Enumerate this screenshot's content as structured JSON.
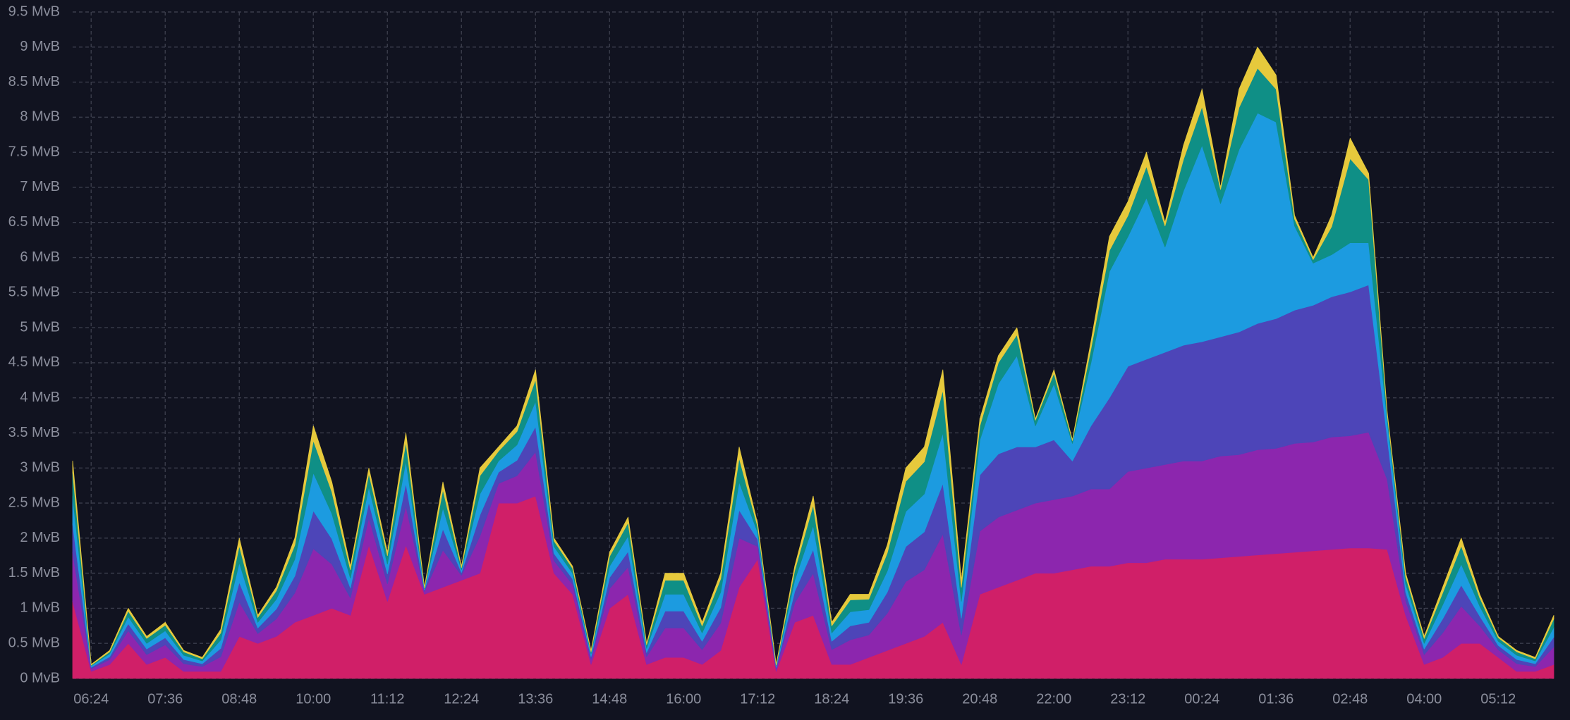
{
  "chart_data": {
    "type": "stacked-area",
    "categories": [
      null,
      "06:24",
      null,
      null,
      null,
      "07:36",
      null,
      null,
      null,
      "08:48",
      null,
      null,
      null,
      "10:00",
      null,
      null,
      null,
      "11:12",
      null,
      null,
      null,
      "12:24",
      null,
      null,
      null,
      "13:36",
      null,
      null,
      null,
      "14:48",
      null,
      null,
      null,
      "16:00",
      null,
      null,
      null,
      "17:12",
      null,
      null,
      null,
      "18:24",
      null,
      null,
      null,
      "19:36",
      null,
      null,
      null,
      "20:48",
      null,
      null,
      null,
      "22:00",
      null,
      null,
      null,
      "23:12",
      null,
      null,
      null,
      "00:24",
      null,
      null,
      null,
      "01:36",
      null,
      null,
      null,
      "02:48",
      null,
      null,
      null,
      "04:00",
      null,
      null,
      null,
      "05:12",
      null,
      null,
      null
    ],
    "ylim": [
      0,
      9.5
    ],
    "yticks": [
      {
        "value": 0,
        "label": "0 MvB"
      },
      {
        "value": 0.5,
        "label": "0.5 MvB"
      },
      {
        "value": 1,
        "label": "1 MvB"
      },
      {
        "value": 1.5,
        "label": "1.5 MvB"
      },
      {
        "value": 2,
        "label": "2 MvB"
      },
      {
        "value": 2.5,
        "label": "2.5 MvB"
      },
      {
        "value": 3,
        "label": "3 MvB"
      },
      {
        "value": 3.5,
        "label": "3.5 MvB"
      },
      {
        "value": 4,
        "label": "4 MvB"
      },
      {
        "value": 4.5,
        "label": "4.5 MvB"
      },
      {
        "value": 5,
        "label": "5 MvB"
      },
      {
        "value": 5.5,
        "label": "5.5 MvB"
      },
      {
        "value": 6,
        "label": "6 MvB"
      },
      {
        "value": 6.5,
        "label": "6.5 MvB"
      },
      {
        "value": 7,
        "label": "7 MvB"
      },
      {
        "value": 7.5,
        "label": "7.5 MvB"
      },
      {
        "value": 8,
        "label": "8 MvB"
      },
      {
        "value": 8.5,
        "label": "8.5 MvB"
      },
      {
        "value": 9,
        "label": "9 MvB"
      },
      {
        "value": 9.5,
        "label": "9.5 MvB"
      }
    ],
    "grid": true,
    "series": [
      {
        "color": "#d01f68",
        "values": [
          1.1,
          0.1,
          0.2,
          0.5,
          0.2,
          0.3,
          0.1,
          0.1,
          0.1,
          0.6,
          0.5,
          0.6,
          0.8,
          0.9,
          1.0,
          0.9,
          1.9,
          1.1,
          1.9,
          1.2,
          1.3,
          1.4,
          1.5,
          2.5,
          2.5,
          2.6,
          1.5,
          1.2,
          0.2,
          1.0,
          1.2,
          0.2,
          0.3,
          0.3,
          0.2,
          0.4,
          1.3,
          1.7,
          0.1,
          0.8,
          0.9,
          0.2,
          0.2,
          0.3,
          0.4,
          0.5,
          0.6,
          0.8,
          0.2,
          1.2,
          1.3,
          1.4,
          1.5,
          1.5,
          1.55,
          1.6,
          1.6,
          1.65,
          1.65,
          1.7,
          1.7,
          1.7,
          1.72,
          1.74,
          1.76,
          1.78,
          1.8,
          1.82,
          1.84,
          1.86,
          1.86,
          1.84,
          0.9,
          0.2,
          0.3,
          0.5,
          0.5,
          0.3,
          0.1,
          0.1,
          0.2
        ]
      },
      {
        "color": "#8c26ae",
        "values": [
          0.7,
          0.04,
          0.07,
          0.18,
          0.14,
          0.18,
          0.11,
          0.07,
          0.21,
          0.49,
          0.14,
          0.25,
          0.42,
          0.95,
          0.63,
          0.25,
          0.39,
          0.25,
          0.56,
          0.04,
          0.53,
          0.07,
          0.53,
          0.28,
          0.39,
          0.63,
          0.18,
          0.14,
          0.07,
          0.28,
          0.39,
          0.11,
          0.42,
          0.42,
          0.21,
          0.39,
          0.7,
          0.18,
          0.04,
          0.28,
          0.6,
          0.21,
          0.35,
          0.32,
          0.53,
          0.88,
          0.95,
          1.26,
          0.42,
          0.9,
          1.0,
          1.0,
          1.0,
          1.05,
          1.05,
          1.1,
          1.1,
          1.3,
          1.35,
          1.35,
          1.4,
          1.4,
          1.45,
          1.45,
          1.5,
          1.5,
          1.55,
          1.55,
          1.6,
          1.6,
          1.65,
          1.0,
          0.21,
          0.14,
          0.35,
          0.53,
          0.25,
          0.11,
          0.11,
          0.07,
          0.25
        ]
      },
      {
        "color": "#4d45b8",
        "values": [
          0.4,
          0.02,
          0.04,
          0.1,
          0.08,
          0.1,
          0.06,
          0.04,
          0.12,
          0.28,
          0.08,
          0.14,
          0.24,
          0.54,
          0.36,
          0.14,
          0.22,
          0.14,
          0.32,
          0.02,
          0.3,
          0.04,
          0.3,
          0.16,
          0.22,
          0.36,
          0.1,
          0.08,
          0.04,
          0.16,
          0.22,
          0.06,
          0.24,
          0.24,
          0.12,
          0.22,
          0.4,
          0.1,
          0.02,
          0.16,
          0.34,
          0.12,
          0.2,
          0.18,
          0.3,
          0.5,
          0.54,
          0.72,
          0.24,
          0.8,
          0.9,
          0.9,
          0.8,
          0.85,
          0.5,
          0.9,
          1.3,
          1.5,
          1.55,
          1.6,
          1.65,
          1.7,
          1.7,
          1.75,
          1.8,
          1.85,
          1.9,
          1.95,
          2.0,
          2.05,
          2.1,
          0.6,
          0.12,
          0.08,
          0.2,
          0.3,
          0.14,
          0.06,
          0.06,
          0.04,
          0.14
        ]
      },
      {
        "color": "#1c9be0",
        "values": [
          0.4,
          0.02,
          0.04,
          0.1,
          0.08,
          0.1,
          0.06,
          0.04,
          0.12,
          0.28,
          0.08,
          0.14,
          0.24,
          0.54,
          0.36,
          0.14,
          0.22,
          0.14,
          0.32,
          0.02,
          0.3,
          0.04,
          0.3,
          0.16,
          0.22,
          0.36,
          0.1,
          0.08,
          0.04,
          0.16,
          0.22,
          0.06,
          0.24,
          0.24,
          0.12,
          0.22,
          0.4,
          0.1,
          0.02,
          0.16,
          0.34,
          0.12,
          0.2,
          0.18,
          0.3,
          0.5,
          0.54,
          0.72,
          0.24,
          0.5,
          1.0,
          1.3,
          0.3,
          0.8,
          0.25,
          0.9,
          1.8,
          1.85,
          2.3,
          1.5,
          2.2,
          2.8,
          1.9,
          2.6,
          3.0,
          2.8,
          1.2,
          0.6,
          0.6,
          0.7,
          0.6,
          0.25,
          0.12,
          0.08,
          0.2,
          0.3,
          0.14,
          0.06,
          0.06,
          0.04,
          0.14
        ]
      },
      {
        "color": "#0f8f86",
        "values": [
          0.34,
          0.01,
          0.03,
          0.08,
          0.07,
          0.08,
          0.05,
          0.03,
          0.1,
          0.24,
          0.07,
          0.12,
          0.2,
          0.46,
          0.31,
          0.12,
          0.19,
          0.12,
          0.27,
          0.01,
          0.26,
          0.03,
          0.26,
          0.14,
          0.19,
          0.31,
          0.08,
          0.07,
          0.03,
          0.14,
          0.19,
          0.05,
          0.2,
          0.2,
          0.1,
          0.19,
          0.34,
          0.08,
          0.01,
          0.14,
          0.29,
          0.1,
          0.17,
          0.15,
          0.26,
          0.43,
          0.46,
          0.61,
          0.2,
          0.2,
          0.3,
          0.3,
          0.08,
          0.15,
          0.04,
          0.2,
          0.3,
          0.3,
          0.45,
          0.3,
          0.45,
          0.55,
          0.2,
          0.6,
          0.64,
          0.47,
          0.1,
          0.05,
          0.4,
          1.2,
          0.9,
          0.08,
          0.1,
          0.07,
          0.17,
          0.26,
          0.12,
          0.05,
          0.05,
          0.03,
          0.12
        ]
      },
      {
        "color": "#e6c93c",
        "values": [
          0.16,
          0.01,
          0.02,
          0.04,
          0.03,
          0.04,
          0.02,
          0.02,
          0.05,
          0.11,
          0.03,
          0.05,
          0.1,
          0.21,
          0.14,
          0.05,
          0.08,
          0.05,
          0.13,
          0.01,
          0.11,
          0.02,
          0.11,
          0.06,
          0.08,
          0.14,
          0.04,
          0.03,
          0.02,
          0.06,
          0.08,
          0.02,
          0.1,
          0.1,
          0.05,
          0.08,
          0.16,
          0.04,
          0.01,
          0.06,
          0.13,
          0.05,
          0.08,
          0.07,
          0.11,
          0.19,
          0.21,
          0.29,
          0.1,
          0.1,
          0.1,
          0.1,
          0.02,
          0.05,
          0.01,
          0.1,
          0.2,
          0.2,
          0.2,
          0.05,
          0.2,
          0.25,
          0.03,
          0.26,
          0.3,
          0.2,
          0.05,
          0.03,
          0.16,
          0.29,
          0.09,
          0.03,
          0.05,
          0.03,
          0.08,
          0.11,
          0.05,
          0.02,
          0.02,
          0.02,
          0.05
        ]
      }
    ]
  }
}
